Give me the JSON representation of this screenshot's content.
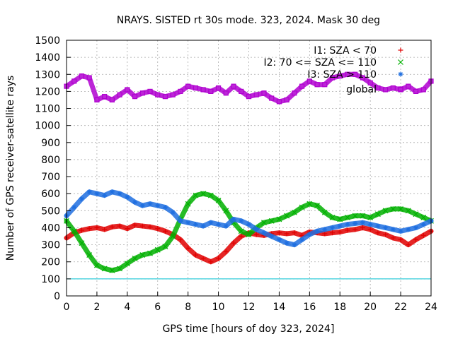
{
  "chart_data": {
    "type": "scatter",
    "title": "NRAYS. SISTED rt 30s mode. 323, 2024. Mask 30 deg",
    "xlabel": "GPS time [hours of doy 323, 2024]",
    "ylabel": "Number of GPS receiver-satellite rays",
    "xlim": [
      0,
      24
    ],
    "ylim": [
      0,
      1500
    ],
    "x_ticks": [
      0,
      2,
      4,
      6,
      8,
      10,
      12,
      14,
      16,
      18,
      20,
      22,
      24
    ],
    "y_ticks": [
      0,
      100,
      200,
      300,
      400,
      500,
      600,
      700,
      800,
      900,
      1000,
      1100,
      1200,
      1300,
      1400,
      1500
    ],
    "grid": true,
    "legend_position": "top-right",
    "threshold_line": {
      "y": 100,
      "color": "#00c0d0"
    },
    "series": [
      {
        "name": "I1: SZA < 70",
        "marker": "+",
        "color": "#e00000",
        "x": [
          0,
          0.5,
          1,
          1.5,
          2,
          2.5,
          3,
          3.5,
          4,
          4.5,
          5,
          5.5,
          6,
          6.5,
          7,
          7.5,
          8,
          8.5,
          9,
          9.5,
          10,
          10.5,
          11,
          11.5,
          12,
          12.5,
          13,
          13.5,
          14,
          14.5,
          15,
          15.5,
          16,
          16.5,
          17,
          17.5,
          18,
          18.5,
          19,
          19.5,
          20,
          20.5,
          21,
          21.5,
          22,
          22.5,
          23,
          23.5,
          24
        ],
        "values": [
          340,
          370,
          385,
          395,
          400,
          390,
          405,
          410,
          395,
          415,
          410,
          405,
          395,
          380,
          360,
          330,
          280,
          240,
          220,
          200,
          220,
          260,
          310,
          350,
          370,
          360,
          355,
          365,
          370,
          365,
          370,
          355,
          375,
          370,
          365,
          370,
          375,
          385,
          390,
          400,
          390,
          370,
          360,
          340,
          330,
          300,
          330,
          355,
          380
        ]
      },
      {
        "name": "I2: 70 <= SZA <= 110",
        "marker": "x",
        "color": "#00b000",
        "x": [
          0,
          0.5,
          1,
          1.5,
          2,
          2.5,
          3,
          3.5,
          4,
          4.5,
          5,
          5.5,
          6,
          6.5,
          7,
          7.5,
          8,
          8.5,
          9,
          9.5,
          10,
          10.5,
          11,
          11.5,
          12,
          12.5,
          13,
          13.5,
          14,
          14.5,
          15,
          15.5,
          16,
          16.5,
          17,
          17.5,
          18,
          18.5,
          19,
          19.5,
          20,
          20.5,
          21,
          21.5,
          22,
          22.5,
          23,
          23.5,
          24
        ],
        "values": [
          440,
          380,
          310,
          240,
          180,
          160,
          150,
          160,
          190,
          220,
          240,
          250,
          270,
          290,
          350,
          450,
          540,
          590,
          600,
          590,
          560,
          500,
          430,
          380,
          360,
          400,
          430,
          440,
          450,
          470,
          490,
          520,
          540,
          530,
          490,
          460,
          450,
          460,
          470,
          470,
          460,
          480,
          500,
          510,
          510,
          500,
          480,
          460,
          440
        ]
      },
      {
        "name": "I3: SZA > 110",
        "marker": "*",
        "color": "#1f6fe0",
        "x": [
          0,
          0.5,
          1,
          1.5,
          2,
          2.5,
          3,
          3.5,
          4,
          4.5,
          5,
          5.5,
          6,
          6.5,
          7,
          7.5,
          8,
          8.5,
          9,
          9.5,
          10,
          10.5,
          11,
          11.5,
          12,
          12.5,
          13,
          13.5,
          14,
          14.5,
          15,
          15.5,
          16,
          16.5,
          17,
          17.5,
          18,
          18.5,
          19,
          19.5,
          20,
          20.5,
          21,
          21.5,
          22,
          22.5,
          23,
          23.5,
          24
        ],
        "values": [
          470,
          520,
          570,
          610,
          600,
          590,
          610,
          600,
          580,
          550,
          530,
          540,
          530,
          520,
          490,
          440,
          430,
          420,
          410,
          430,
          420,
          410,
          450,
          440,
          420,
          390,
          370,
          350,
          330,
          310,
          300,
          330,
          360,
          380,
          390,
          400,
          410,
          420,
          425,
          430,
          420,
          410,
          400,
          390,
          380,
          390,
          400,
          420,
          440
        ]
      },
      {
        "name": "global",
        "marker": "square",
        "color": "#b000d0",
        "x": [
          0,
          0.5,
          1,
          1.5,
          2,
          2.5,
          3,
          3.5,
          4,
          4.5,
          5,
          5.5,
          6,
          6.5,
          7,
          7.5,
          8,
          8.5,
          9,
          9.5,
          10,
          10.5,
          11,
          11.5,
          12,
          12.5,
          13,
          13.5,
          14,
          14.5,
          15,
          15.5,
          16,
          16.5,
          17,
          17.5,
          18,
          18.5,
          19,
          19.5,
          20,
          20.5,
          21,
          21.5,
          22,
          22.5,
          23,
          23.5,
          24
        ],
        "values": [
          1230,
          1260,
          1290,
          1280,
          1150,
          1170,
          1150,
          1180,
          1210,
          1170,
          1190,
          1200,
          1180,
          1170,
          1180,
          1200,
          1230,
          1220,
          1210,
          1200,
          1220,
          1190,
          1230,
          1200,
          1170,
          1180,
          1190,
          1160,
          1140,
          1150,
          1190,
          1230,
          1260,
          1240,
          1240,
          1280,
          1290,
          1300,
          1300,
          1280,
          1250,
          1220,
          1210,
          1220,
          1210,
          1230,
          1200,
          1210,
          1260
        ]
      }
    ]
  }
}
